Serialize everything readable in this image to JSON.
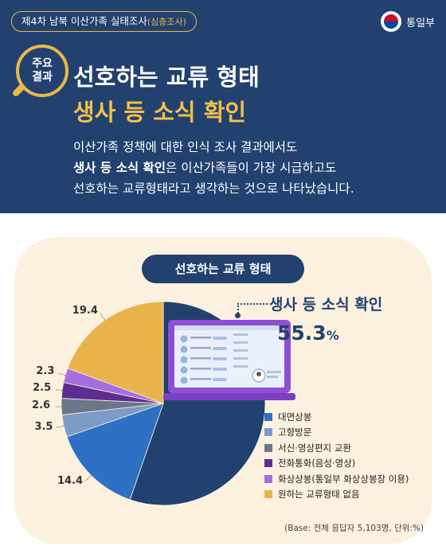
{
  "header": {
    "survey": "제4차 남북 이산가족 실태조사",
    "survey_sub": "(심층조사)",
    "brand": "통일부"
  },
  "badge": {
    "text": "주요\n결과"
  },
  "title": {
    "line1": "선호하는 교류 형태",
    "line2": "생사 등 소식 확인"
  },
  "description": {
    "line1": "이산가족 정책에 대한 인식 조사 결과에서도",
    "line2_bold": "생사 등 소식 확인",
    "line2_rest": "은 이산가족들이 가장 시급하고도",
    "line3": "선호하는 교류형태라고 생각하는 것으로 나타났습니다."
  },
  "highlight": {
    "label": "생사 등 소식 확인",
    "value": "55.3",
    "unit": "%"
  },
  "base_note": "(Base: 전체 응답자 5,103명, 단위:%)",
  "chart_data": {
    "type": "pie",
    "title": "선호하는 교류 형태",
    "unit": "%",
    "slices": [
      {
        "label": "생사 등 소식 확인",
        "value": 55.3,
        "color": "#22416f",
        "show_label": false
      },
      {
        "label": "대면상봉",
        "value": 14.4,
        "color": "#2e71c4",
        "show_label": true
      },
      {
        "label": "고향방문",
        "value": 3.5,
        "color": "#7d9bc7",
        "show_label": true
      },
      {
        "label": "서신·영상편지 교환",
        "value": 2.6,
        "color": "#6b7789",
        "show_label": true
      },
      {
        "label": "전화통화(음성·영상)",
        "value": 2.5,
        "color": "#5b2d91",
        "show_label": true
      },
      {
        "label": "화상상봉(통일부 화상상봉장 이용)",
        "value": 2.3,
        "color": "#a56ee0",
        "show_label": true
      },
      {
        "label": "원하는 교류형태 없음",
        "value": 19.4,
        "color": "#e9b44c",
        "show_label": true
      }
    ],
    "legend": [
      "대면상봉",
      "고향방문",
      "서신·영상편지 교환",
      "전화통화(음성·영상)",
      "화상상봉(통일부 화상상봉장 이용)",
      "원하는 교류형태 없음"
    ],
    "legend_position": "right"
  }
}
